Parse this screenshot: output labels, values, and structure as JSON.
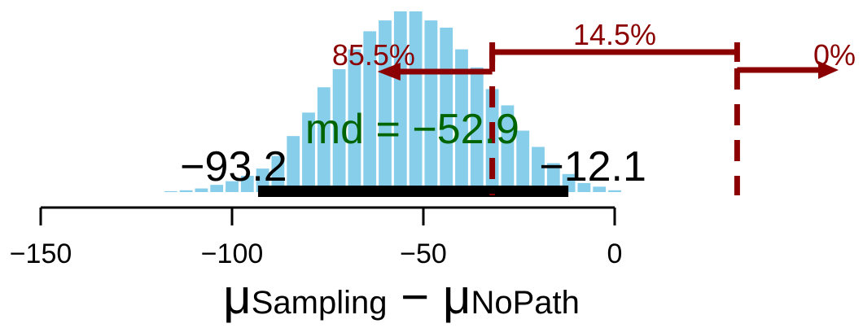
{
  "chart_data": {
    "type": "bar",
    "title": "",
    "xlabel": {
      "symbol": "μ",
      "sub1": "Sampling",
      "minus": "−",
      "sub2": "NoPath"
    },
    "xlim": [
      -150,
      0
    ],
    "xticks": [
      {
        "value": -150,
        "label": "−150"
      },
      {
        "value": -100,
        "label": "−100"
      },
      {
        "value": -50,
        "label": "−50"
      },
      {
        "value": 0,
        "label": "0"
      }
    ],
    "histogram": {
      "bin_width": 4,
      "bin_left_edges": [
        -118,
        -114,
        -110,
        -106,
        -102,
        -98,
        -94,
        -90,
        -86,
        -82,
        -78,
        -74,
        -70,
        -66,
        -62,
        -58,
        -54,
        -50,
        -46,
        -42,
        -38,
        -34,
        -30,
        -26,
        -22,
        -18,
        -14,
        -10,
        -6,
        -2
      ],
      "relative_heights": [
        0.005,
        0.01,
        0.02,
        0.04,
        0.06,
        0.09,
        0.13,
        0.2,
        0.31,
        0.44,
        0.58,
        0.68,
        0.79,
        0.89,
        0.95,
        1.0,
        1.0,
        0.95,
        0.91,
        0.79,
        0.69,
        0.57,
        0.48,
        0.34,
        0.25,
        0.16,
        0.1,
        0.05,
        0.03,
        0.01
      ],
      "color": "#87ceeb"
    },
    "hdi": {
      "low": -93.2,
      "high": -12.1,
      "low_label": "−93.2",
      "high_label": "−12.1",
      "color": "#000000"
    },
    "central_tendency": {
      "text": "md = −52.9",
      "value": -52.9,
      "color": "#006400"
    },
    "comparison_lines": [
      {
        "value": -32,
        "left_label": "85.5%",
        "right_label": "14.5%"
      },
      {
        "value": 32,
        "left_label": "14.5%",
        "right_label": "0%"
      }
    ],
    "rope_color": "#8b0000",
    "grid": false,
    "legend": "none"
  }
}
